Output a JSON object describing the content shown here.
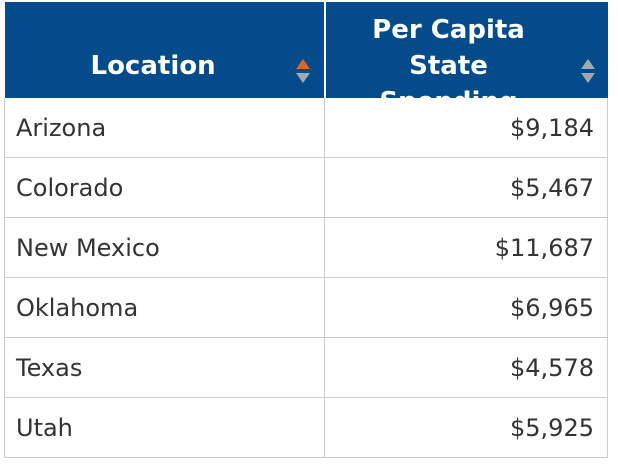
{
  "table": {
    "headers": {
      "location": "Location",
      "spending": "Per Capita State Spending"
    },
    "sort_state": {
      "location": "ascending",
      "spending": "none"
    },
    "colors": {
      "header_bg": "#044b8c",
      "sort_active": "#e0661b",
      "sort_inactive": "#a0a8b0"
    },
    "rows": [
      {
        "location": "Arizona",
        "spending": "$9,184"
      },
      {
        "location": "Colorado",
        "spending": "$5,467"
      },
      {
        "location": "New Mexico",
        "spending": "$11,687"
      },
      {
        "location": "Oklahoma",
        "spending": "$6,965"
      },
      {
        "location": "Texas",
        "spending": "$4,578"
      },
      {
        "location": "Utah",
        "spending": "$5,925"
      }
    ]
  }
}
